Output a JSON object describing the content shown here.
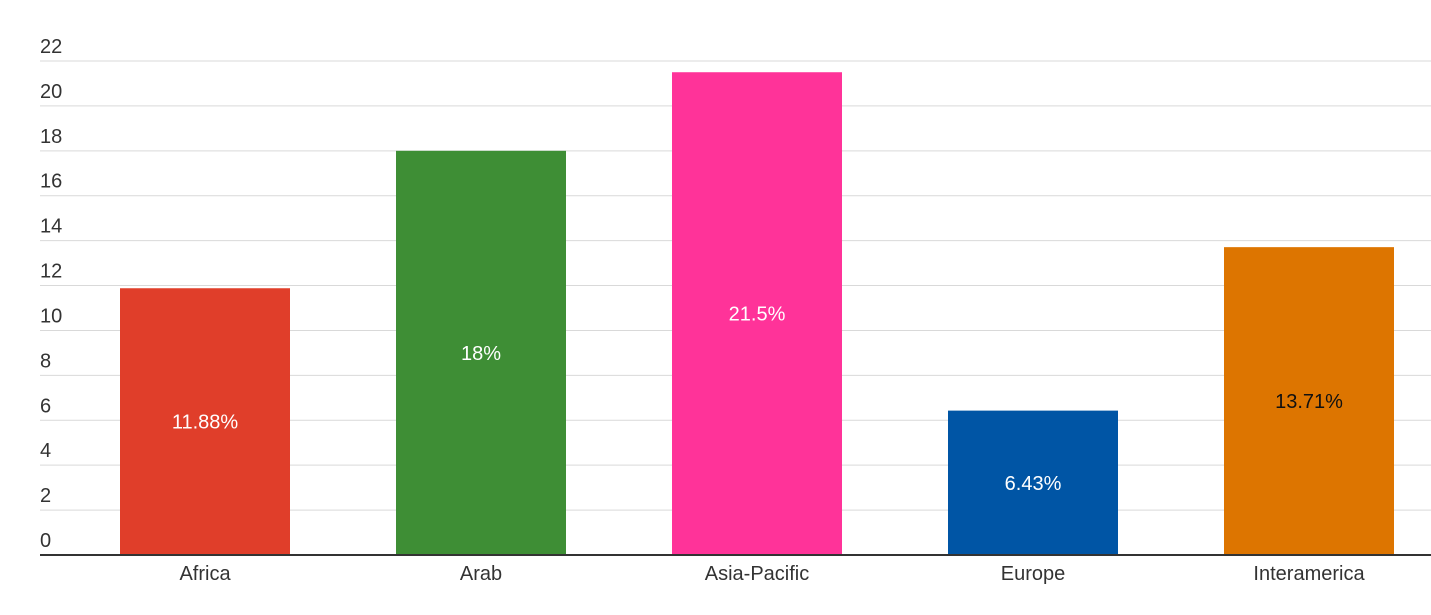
{
  "chart_data": {
    "type": "bar",
    "title": "",
    "xlabel": "",
    "ylabel": "",
    "categories": [
      "Africa",
      "Arab",
      "Asia-Pacific",
      "Europe",
      "Interamerica"
    ],
    "values": [
      11.88,
      18,
      21.5,
      6.43,
      13.71
    ],
    "data_labels": [
      "11.88%",
      "18%",
      "21.5%",
      "6.43%",
      "13.71%"
    ],
    "colors": [
      "#e03e2a",
      "#3e8e35",
      "#ff3399",
      "#0055a5",
      "#dd7500"
    ],
    "label_colors": [
      "#ffffff",
      "#ffffff",
      "#ffffff",
      "#ffffff",
      "#111111"
    ],
    "ylim": [
      0,
      22
    ],
    "yticks": [
      0,
      2,
      4,
      6,
      8,
      10,
      12,
      14,
      16,
      18,
      20,
      22
    ],
    "grid": true,
    "legend": "none"
  }
}
